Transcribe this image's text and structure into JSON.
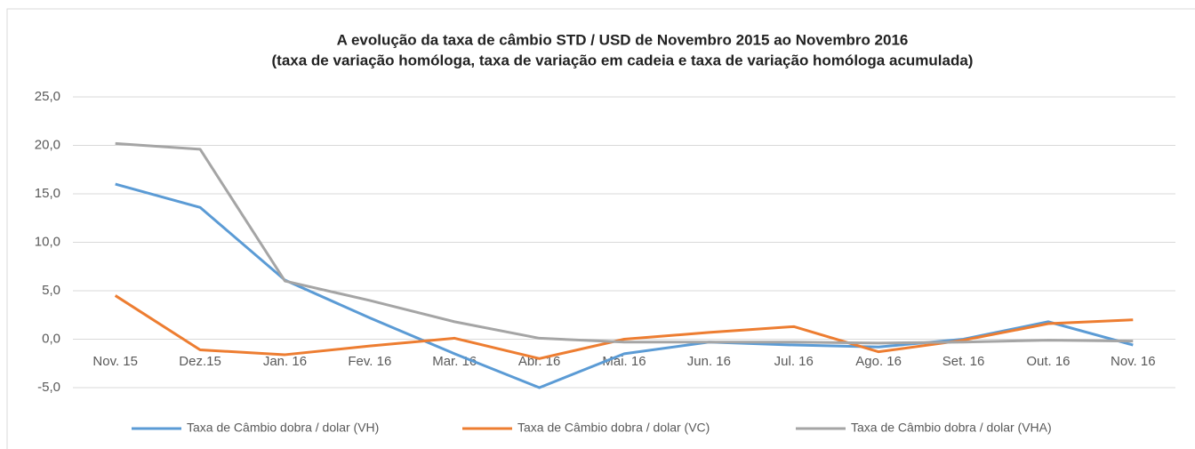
{
  "chart_data": {
    "type": "line",
    "title": "A evolução da taxa de câmbio STD / USD de Novembro 2015 ao Novembro 2016",
    "subtitle": "(taxa de variação homóloga, taxa de variação em cadeia e taxa de variação homóloga acumulada)",
    "categories": [
      "Nov. 15",
      "Dez.15",
      "Jan. 16",
      "Fev. 16",
      "Mar. 16",
      "Abr. 16",
      "Mai. 16",
      "Jun. 16",
      "Jul. 16",
      "Ago. 16",
      "Set. 16",
      "Out. 16",
      "Nov. 16"
    ],
    "series": [
      {
        "name": "Taxa de Câmbio dobra / dolar (VH)",
        "color": "#5b9bd5",
        "values": [
          16.0,
          13.6,
          6.1,
          2.2,
          -1.5,
          -5.0,
          -1.5,
          -0.3,
          -0.6,
          -0.8,
          0.0,
          1.8,
          -0.6
        ]
      },
      {
        "name": "Taxa de Câmbio dobra / dolar (VC)",
        "color": "#ed7d31",
        "values": [
          4.5,
          -1.1,
          -1.6,
          -0.7,
          0.1,
          -2.0,
          0.0,
          0.7,
          1.3,
          -1.3,
          -0.1,
          1.6,
          2.0
        ]
      },
      {
        "name": "Taxa de Câmbio dobra / dolar (VHA)",
        "color": "#a5a5a5",
        "values": [
          20.2,
          19.6,
          6.0,
          4.0,
          1.8,
          0.1,
          -0.3,
          -0.3,
          -0.3,
          -0.4,
          -0.3,
          -0.1,
          -0.2
        ]
      }
    ],
    "ylim": [
      -5,
      25
    ],
    "yticks": [
      {
        "value": -5,
        "label": "-5,0"
      },
      {
        "value": 0,
        "label": "0,0"
      },
      {
        "value": 5,
        "label": "5,0"
      },
      {
        "value": 10,
        "label": "10,0"
      },
      {
        "value": 15,
        "label": "15,0"
      },
      {
        "value": 20,
        "label": "20,0"
      },
      {
        "value": 25,
        "label": "25,0"
      }
    ],
    "grid": true,
    "legend": "bottom"
  }
}
